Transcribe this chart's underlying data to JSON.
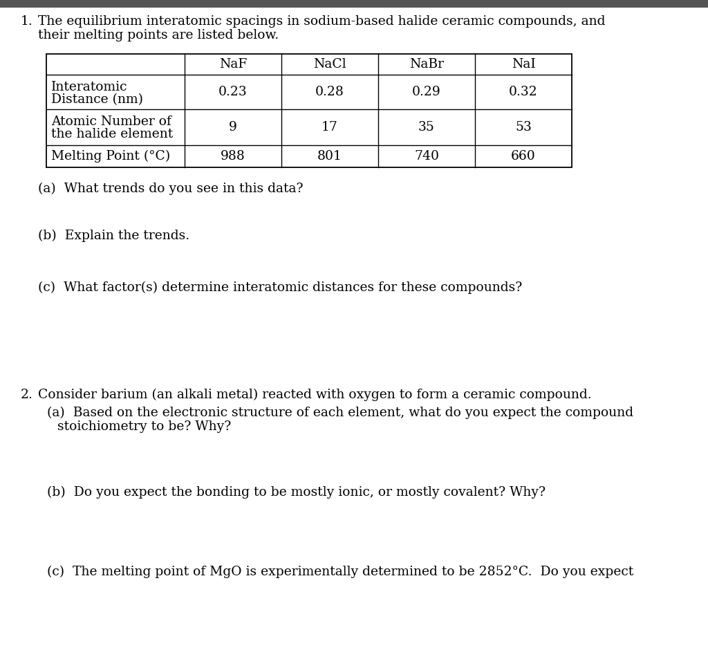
{
  "background_color": "#ffffff",
  "header_bar_color": "#555555",
  "table_headers": [
    "",
    "NaF",
    "NaCl",
    "NaBr",
    "NaI"
  ],
  "table_rows": [
    [
      "Interatomic\nDistance (nm)",
      "0.23",
      "0.28",
      "0.29",
      "0.32"
    ],
    [
      "Atomic Number of\nthe halide element",
      "9",
      "17",
      "35",
      "53"
    ],
    [
      "Melting Point (°C)",
      "988",
      "801",
      "740",
      "660"
    ]
  ],
  "question_a": "(a)  What trends do you see in this data?",
  "question_b": "(b)  Explain the trends.",
  "question_c": "(c)  What factor(s) determine interatomic distances for these compounds?",
  "q2_intro": "Consider barium (an alkali metal) reacted with oxygen to form a ceramic compound.",
  "q2a_line1": "(a)  Based on the electronic structure of each element, what do you expect the compound",
  "q2a_line2": "stoichiometry to be? Why?",
  "q2b": "(b)  Do you expect the bonding to be mostly ionic, or mostly covalent? Why?",
  "q2c": "(c)  The melting point of MgO is experimentally determined to be 2852°C.  Do you expect",
  "font_size": 13.5,
  "font_family": "DejaVu Serif"
}
